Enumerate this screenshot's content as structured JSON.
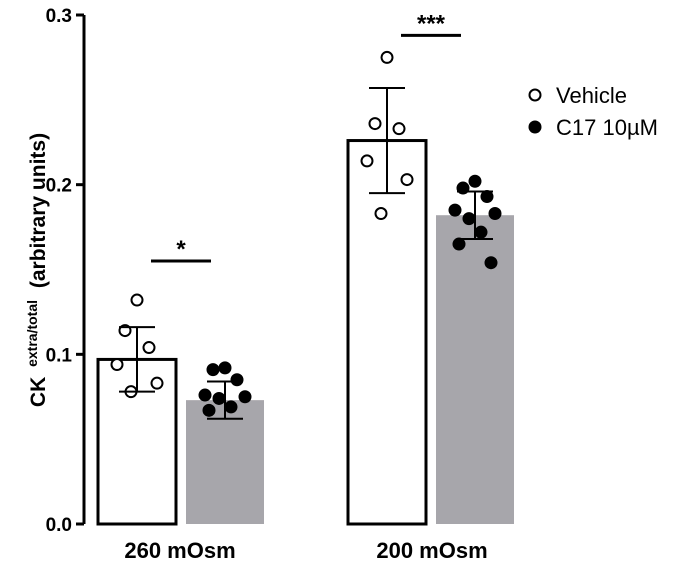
{
  "chart_data": {
    "type": "bar",
    "categories": [
      "260 mOsm",
      "200 mOsm"
    ],
    "ylabel": {
      "main": "CK",
      "superscript": "extra/total",
      "suffix": "(arbitrary units)"
    },
    "ylim": [
      0,
      0.3
    ],
    "yticks": [
      {
        "value": 0.0,
        "label": "0.0"
      },
      {
        "value": 0.1,
        "label": "0.1"
      },
      {
        "value": 0.2,
        "label": "0.2"
      },
      {
        "value": 0.3,
        "label": "0.3"
      }
    ],
    "grid": false,
    "legend": {
      "position": "right",
      "entries": [
        {
          "name": "Vehicle",
          "marker": "open-circle"
        },
        {
          "name": "C17 10µM",
          "marker": "filled-circle"
        }
      ]
    },
    "series": [
      {
        "name": "Vehicle",
        "fill": "#ffffff",
        "stroke": "#000000",
        "marker": "open-circle",
        "values": [
          0.097,
          0.226
        ],
        "sd": [
          0.019,
          0.031
        ],
        "points": [
          [
            0.132,
            0.114,
            0.104,
            0.094,
            0.083,
            0.078
          ],
          [
            0.275,
            0.236,
            0.233,
            0.214,
            0.203,
            0.183
          ]
        ]
      },
      {
        "name": "C17 10µM",
        "fill": "#a7a6ab",
        "stroke": "none",
        "marker": "filled-circle",
        "values": [
          0.073,
          0.182
        ],
        "sd": [
          0.011,
          0.014
        ],
        "points": [
          [
            0.092,
            0.091,
            0.085,
            0.076,
            0.075,
            0.074,
            0.069,
            0.067
          ],
          [
            0.202,
            0.198,
            0.193,
            0.185,
            0.183,
            0.18,
            0.172,
            0.165,
            0.154
          ]
        ]
      }
    ],
    "annotations": [
      {
        "category": 0,
        "text": "*",
        "y": 0.155
      },
      {
        "category": 1,
        "text": "***",
        "y": 0.288
      }
    ]
  }
}
